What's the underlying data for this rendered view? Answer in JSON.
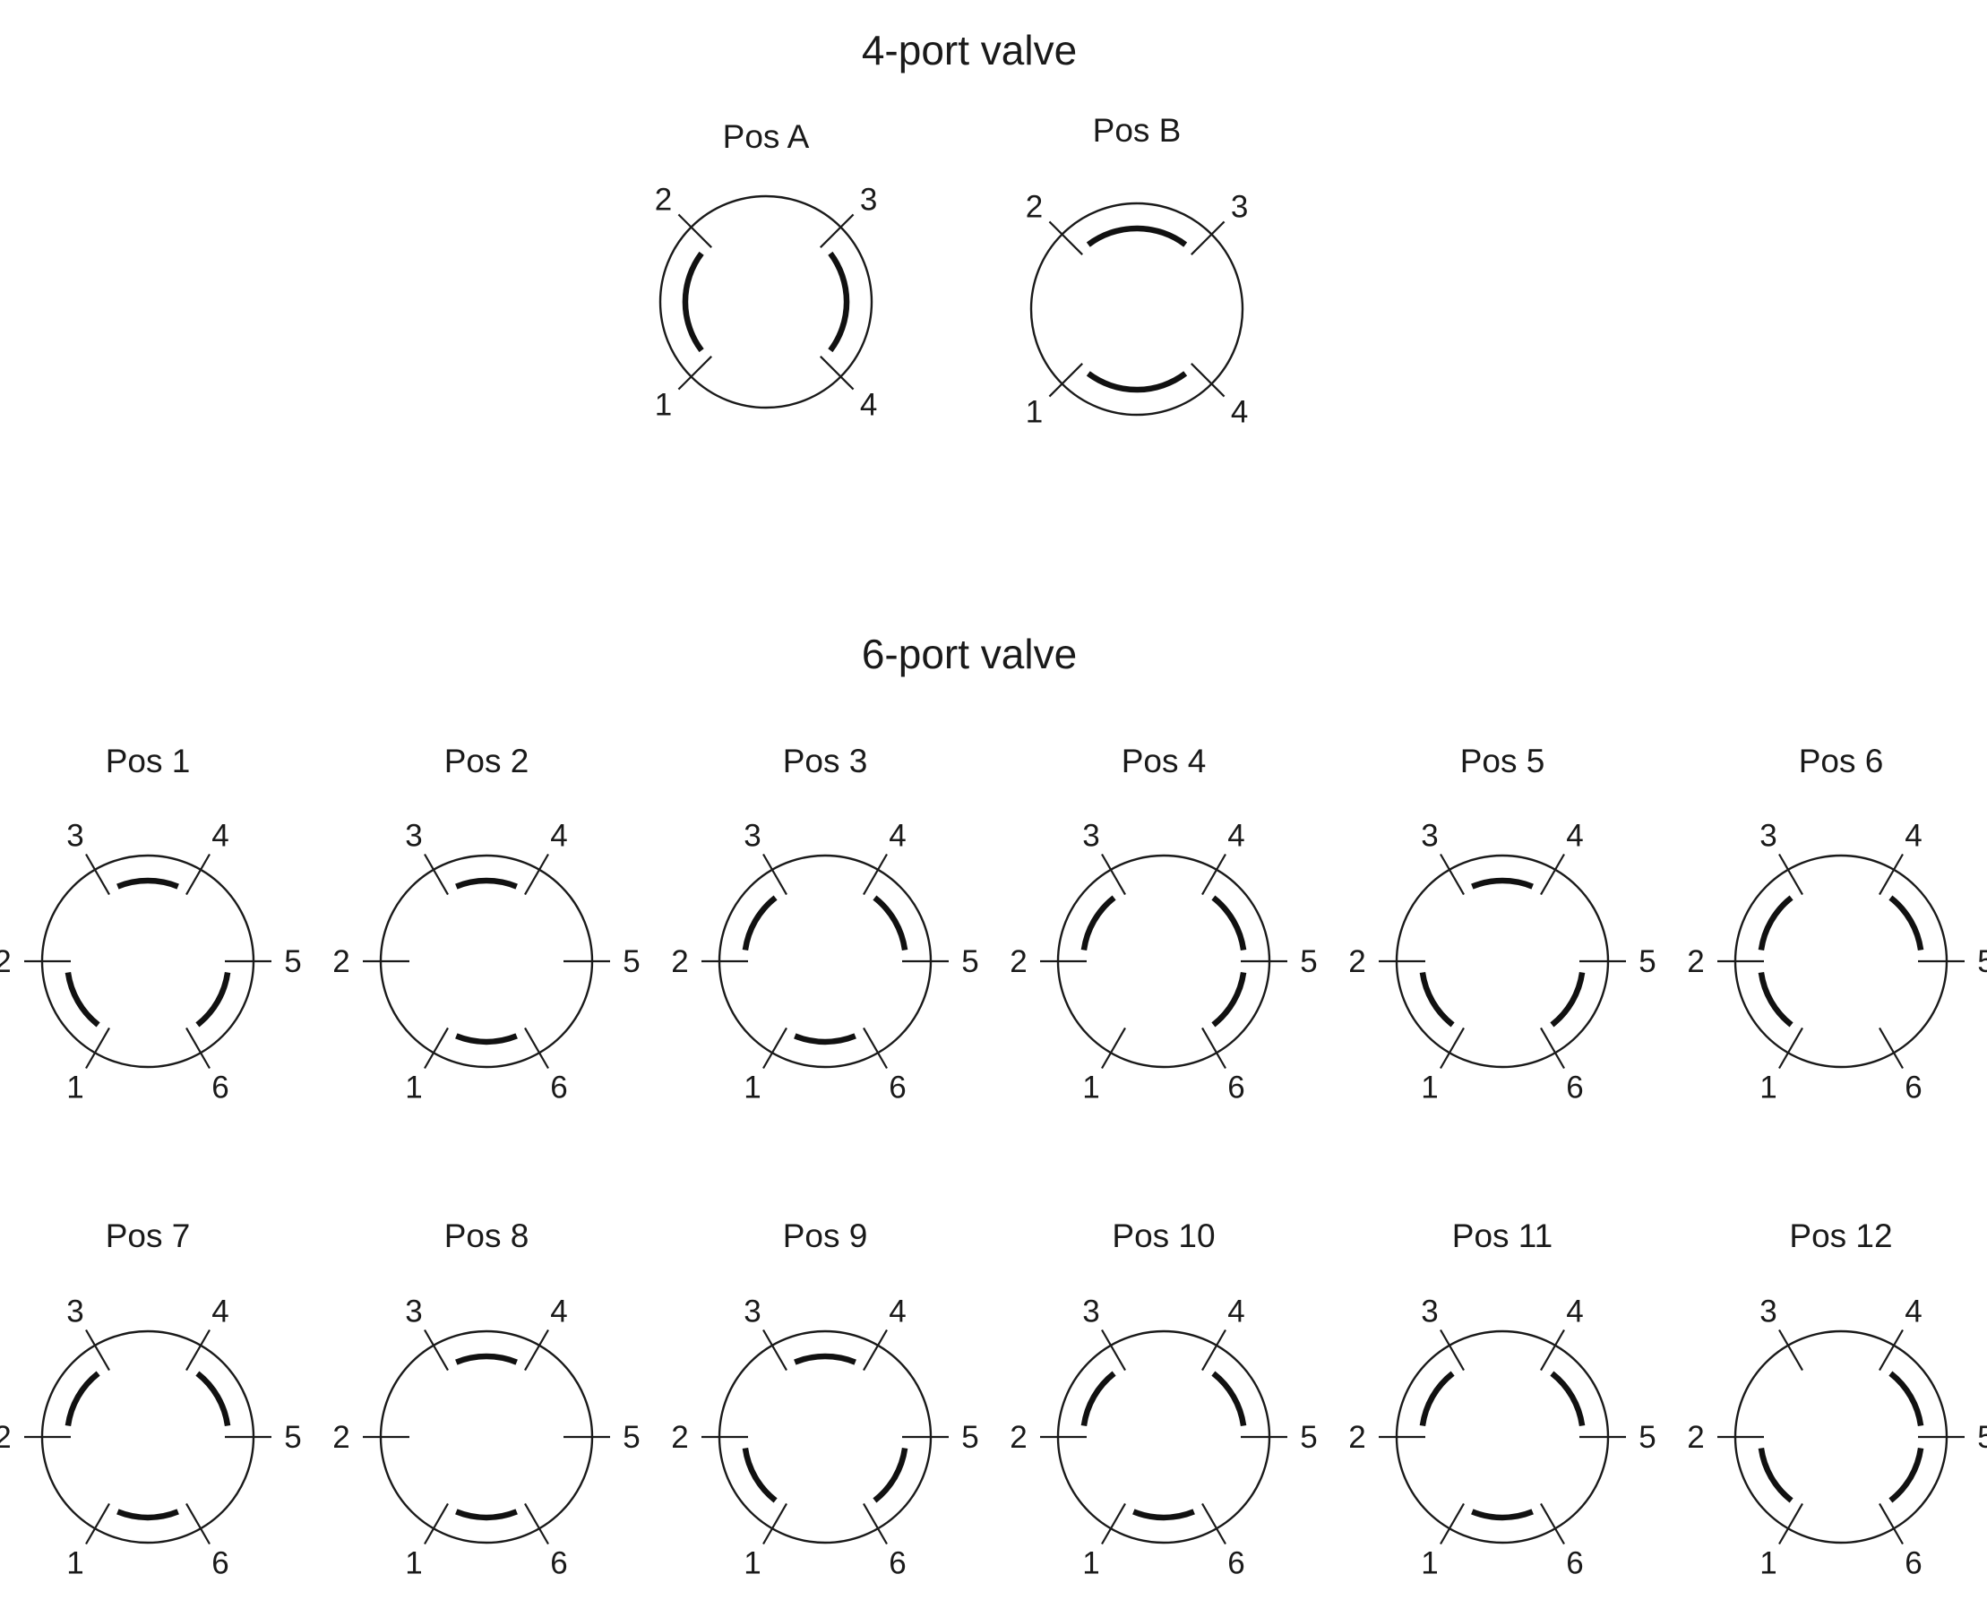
{
  "sections": {
    "four_port": {
      "title": "4-port valve",
      "ports": [
        "1",
        "2",
        "3",
        "4"
      ],
      "positions": [
        {
          "label": "Pos A",
          "connections": [
            [
              "1",
              "2"
            ],
            [
              "3",
              "4"
            ]
          ]
        },
        {
          "label": "Pos B",
          "connections": [
            [
              "2",
              "3"
            ],
            [
              "1",
              "4"
            ]
          ]
        }
      ]
    },
    "six_port": {
      "title": "6-port valve",
      "ports": [
        "1",
        "2",
        "3",
        "4",
        "5",
        "6"
      ],
      "positions": [
        {
          "label": "Pos 1",
          "connections": [
            [
              "3",
              "4"
            ],
            [
              "1",
              "2"
            ],
            [
              "5",
              "6"
            ]
          ]
        },
        {
          "label": "Pos 2",
          "connections": [
            [
              "3",
              "4"
            ],
            [
              "1",
              "6"
            ]
          ]
        },
        {
          "label": "Pos 3",
          "connections": [
            [
              "2",
              "3"
            ],
            [
              "4",
              "5"
            ],
            [
              "1",
              "6"
            ]
          ]
        },
        {
          "label": "Pos 4",
          "connections": [
            [
              "2",
              "3"
            ],
            [
              "4",
              "5"
            ],
            [
              "5",
              "6"
            ]
          ]
        },
        {
          "label": "Pos 5",
          "connections": [
            [
              "3",
              "4"
            ],
            [
              "1",
              "2"
            ],
            [
              "5",
              "6"
            ]
          ]
        },
        {
          "label": "Pos 6",
          "connections": [
            [
              "2",
              "3"
            ],
            [
              "4",
              "5"
            ],
            [
              "1",
              "2"
            ]
          ]
        },
        {
          "label": "Pos 7",
          "connections": [
            [
              "2",
              "3"
            ],
            [
              "4",
              "5"
            ],
            [
              "1",
              "6"
            ]
          ]
        },
        {
          "label": "Pos 8",
          "connections": [
            [
              "3",
              "4"
            ],
            [
              "1",
              "6"
            ]
          ]
        },
        {
          "label": "Pos 9",
          "connections": [
            [
              "3",
              "4"
            ],
            [
              "1",
              "2"
            ],
            [
              "5",
              "6"
            ]
          ]
        },
        {
          "label": "Pos 10",
          "connections": [
            [
              "2",
              "3"
            ],
            [
              "4",
              "5"
            ],
            [
              "1",
              "6"
            ]
          ]
        },
        {
          "label": "Pos 11",
          "connections": [
            [
              "2",
              "3"
            ],
            [
              "4",
              "5"
            ],
            [
              "1",
              "6"
            ]
          ]
        },
        {
          "label": "Pos 12",
          "connections": [
            [
              "4",
              "5"
            ],
            [
              "1",
              "2"
            ],
            [
              "5",
              "6"
            ]
          ]
        }
      ]
    }
  }
}
